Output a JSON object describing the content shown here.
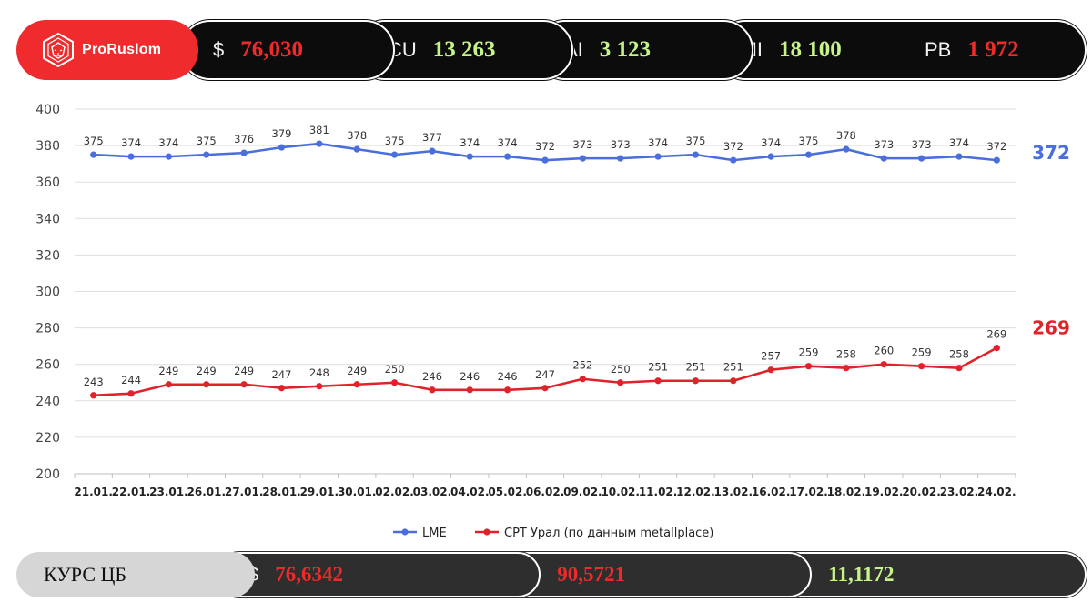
{
  "brand": {
    "name": "ProRuslom",
    "color": "#ef2b2e"
  },
  "ticker": {
    "usd": {
      "symbol": "$",
      "value": "76,030",
      "color": "#ee2a2a"
    },
    "cu": {
      "label": "CU",
      "value": "13 263",
      "color": "#c6f48a"
    },
    "al": {
      "label": "AI",
      "value": "3 123",
      "color": "#c6f48a"
    },
    "ni": {
      "label": "NI",
      "value": "18 100",
      "color": "#c6f48a"
    },
    "pb": {
      "label": "PB",
      "value": "1 972",
      "color": "#ee2a2a"
    }
  },
  "chart_data": {
    "type": "line",
    "title": "",
    "xlabel": "",
    "ylabel": "",
    "ylim": [
      200,
      400
    ],
    "yticks": [
      200,
      220,
      240,
      260,
      280,
      300,
      320,
      340,
      360,
      380,
      400
    ],
    "grid": true,
    "legend_position": "bottom",
    "categories": [
      "21.01.",
      "22.01.",
      "23.01.",
      "26.01.",
      "27.01.",
      "28.01.",
      "29.01.",
      "30.01.",
      "02.02.",
      "03.02.",
      "04.02.",
      "05.02.",
      "06.02.",
      "09.02.",
      "10.02.",
      "11.02.",
      "12.02.",
      "13.02.",
      "16.02.",
      "17.02.",
      "18.02.",
      "19.02.",
      "20.02.",
      "23.02.",
      "24.02."
    ],
    "series": [
      {
        "name": "LME",
        "color": "#4a6fdc",
        "values": [
          375,
          374,
          374,
          375,
          376,
          379,
          381,
          378,
          375,
          377,
          374,
          374,
          372,
          373,
          373,
          374,
          375,
          372,
          374,
          375,
          378,
          373,
          373,
          374,
          372
        ],
        "end_label": "372"
      },
      {
        "name": "СРТ  Урал (по данным metallplace)",
        "color": "#e0232b",
        "values": [
          243,
          244,
          249,
          249,
          249,
          247,
          248,
          249,
          250,
          246,
          246,
          246,
          247,
          252,
          250,
          251,
          251,
          251,
          257,
          259,
          258,
          260,
          259,
          258,
          269
        ],
        "end_label": "269"
      }
    ]
  },
  "rates": {
    "title": "КУРС ЦБ",
    "usd": {
      "symbol": "$",
      "value": "76,6342",
      "color": "#ee2a2a"
    },
    "eur": {
      "symbol": "€",
      "value": "90,5721",
      "color": "#ee2a2a"
    },
    "cny": {
      "symbol": "¥",
      "value": "11,1172",
      "color": "#c6f48a"
    }
  }
}
